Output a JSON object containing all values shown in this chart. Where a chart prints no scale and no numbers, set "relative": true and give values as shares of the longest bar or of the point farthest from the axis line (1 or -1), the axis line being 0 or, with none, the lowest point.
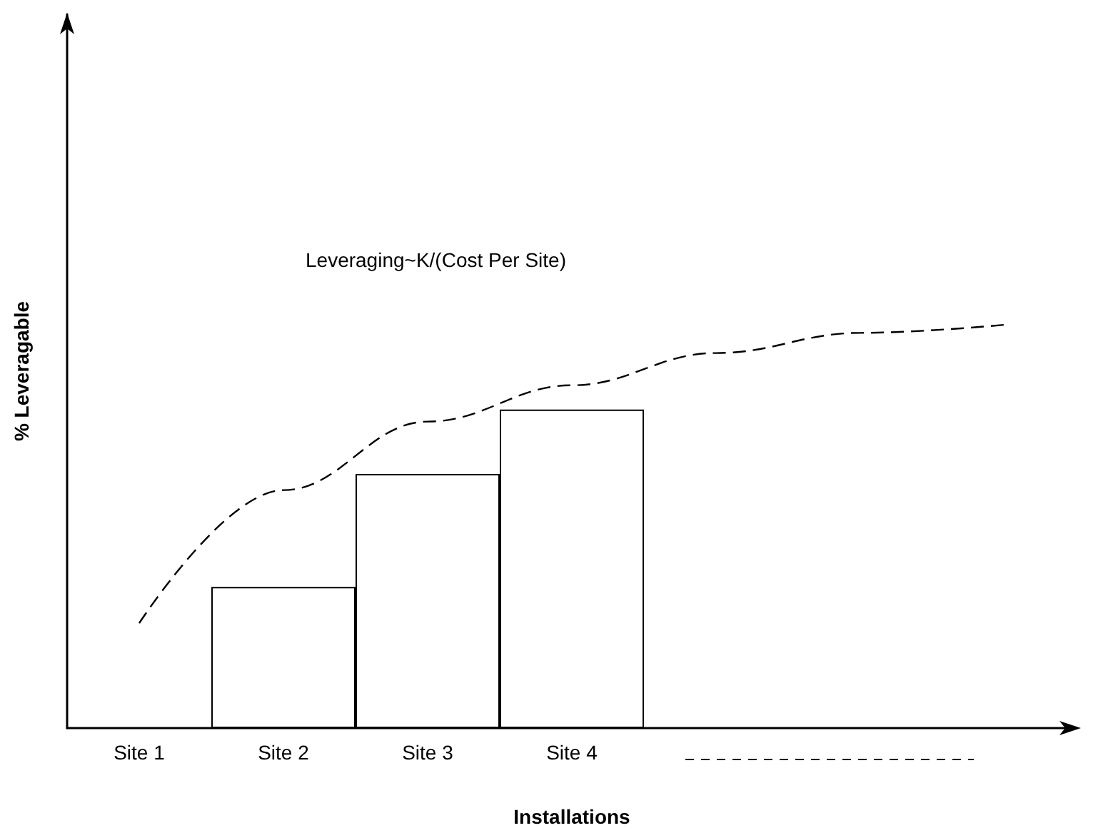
{
  "chart_data": {
    "type": "bar",
    "relative": true,
    "xlabel": "Installations",
    "ylabel": "% Leveragable",
    "annotations": [
      "Leveraging~K/(Cost Per Site)"
    ],
    "categories": [
      "Site 1",
      "Site 2",
      "Site 3",
      "Site 4",
      null,
      null,
      null
    ],
    "series": [
      {
        "color": "#ffffff",
        "values": [
          null,
          0.35,
          0.63,
          0.79,
          null,
          null,
          null
        ]
      },
      {
        "type": "line",
        "color": "#000000",
        "line_style": "dashed",
        "marker": "none",
        "values": [
          0.26,
          0.59,
          0.76,
          0.85,
          0.93,
          0.98,
          1.0
        ]
      }
    ],
    "grid": false
  }
}
